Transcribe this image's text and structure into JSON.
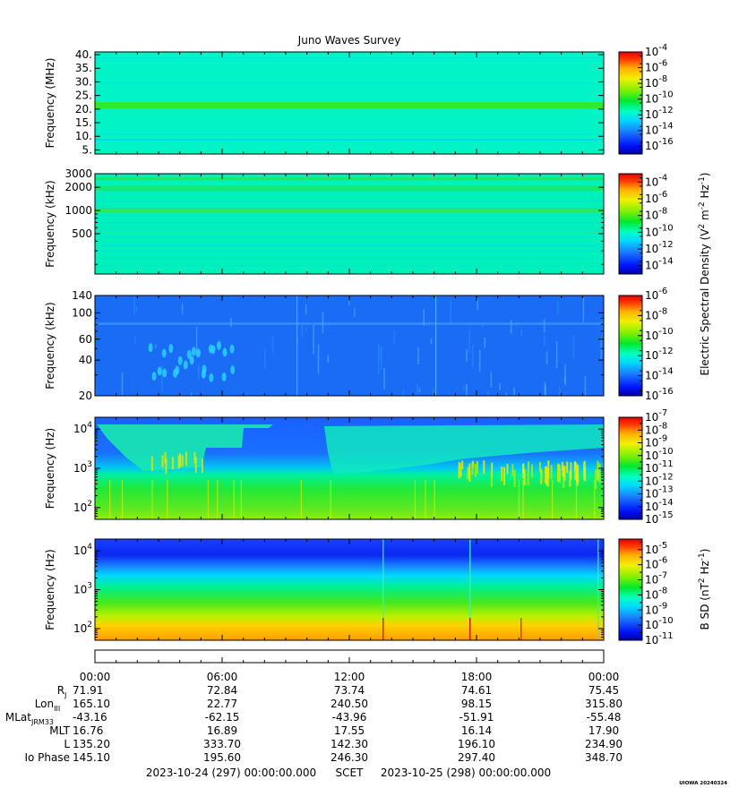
{
  "title": "Juno Waves Survey",
  "chart_data": {
    "type": "heatmap",
    "title": "Juno Waves Survey",
    "x_axis": {
      "tick_labels": [
        "00:00",
        "06:00",
        "12:00",
        "18:00",
        "00:00"
      ],
      "range": [
        "2023-10-24 00:00",
        "2023-10-25 00:00"
      ]
    },
    "panels": [
      {
        "name": "hfr-high",
        "ylabel": "Frequency (MHz)",
        "yscale": "linear",
        "ylim": [
          3.5,
          41
        ],
        "yticks": [
          5,
          10,
          15,
          20,
          25,
          30,
          35,
          40
        ],
        "ytick_labels": [
          "5.",
          "10.",
          "15.",
          "20.",
          "25.",
          "30.",
          "35.",
          "40."
        ],
        "colorbar_exponents": [
          "-4",
          "-6",
          "-8",
          "-10",
          "-12",
          "-14",
          "-16"
        ],
        "colorbar_range_exp": [
          -17,
          -4
        ]
      },
      {
        "name": "hfr-low",
        "ylabel": "Frequency (kHz)",
        "yscale": "log",
        "ylim": [
          150,
          3000
        ],
        "yticks": [
          500,
          1000,
          2000,
          3000
        ],
        "ytick_labels": [
          "500",
          "1000",
          "2000",
          "3000"
        ],
        "colorbar_exponents": [
          "-4",
          "-6",
          "-8",
          "-10",
          "-12",
          "-14"
        ],
        "colorbar_range_exp": [
          -15,
          -3
        ]
      },
      {
        "name": "lfr-high",
        "ylabel": "Frequency (kHz)",
        "yscale": "log",
        "ylim": [
          20,
          140
        ],
        "yticks": [
          20,
          40,
          60,
          100,
          140
        ],
        "ytick_labels": [
          "20",
          "40",
          "60",
          "100",
          "140"
        ],
        "colorbar_exponents": [
          "-6",
          "-8",
          "-10",
          "-12",
          "-14",
          "-16"
        ],
        "colorbar_range_exp": [
          -16,
          -6
        ]
      },
      {
        "name": "lfr-low",
        "ylabel": "Frequency (Hz)",
        "yscale": "log",
        "ylim": [
          50,
          20000
        ],
        "yticks": [
          100,
          1000,
          10000
        ],
        "ytick_labels": [
          [
            "10",
            "2"
          ],
          [
            "10",
            "3"
          ],
          [
            "10",
            "4"
          ]
        ],
        "colorbar_exponents": [
          "-7",
          "-8",
          "-9",
          "-10",
          "-11",
          "-12",
          "-13",
          "-14",
          "-15"
        ],
        "colorbar_range_exp": [
          -15,
          -7
        ]
      },
      {
        "name": "magnetic",
        "ylabel": "Frequency (Hz)",
        "yscale": "log",
        "ylim": [
          50,
          20000
        ],
        "yticks": [
          100,
          1000,
          10000
        ],
        "ytick_labels": [
          [
            "10",
            "2"
          ],
          [
            "10",
            "3"
          ],
          [
            "10",
            "4"
          ]
        ],
        "colorbar_exponents": [
          "-5",
          "-6",
          "-7",
          "-8",
          "-9",
          "-10",
          "-11"
        ],
        "colorbar_range_exp": [
          -11,
          -4.3
        ]
      }
    ],
    "colorbar_base": "10",
    "colorbar_titles": {
      "electric": {
        "text": "Electric Spectral Density (V",
        "sup1": "2",
        "mid": " m",
        "sup2": "-2",
        "mid2": " Hz",
        "sup3": "-1",
        "end": ")"
      },
      "magnetic": {
        "text": "B SD (nT",
        "sup1": "2",
        "mid": " Hz",
        "sup2": "-1",
        "end": ")"
      }
    }
  },
  "ephemeris": {
    "times": [
      "00:00",
      "06:00",
      "12:00",
      "18:00",
      "00:00"
    ],
    "rows": [
      {
        "label": "R",
        "sub": "J",
        "values": [
          "71.91",
          "72.84",
          "73.74",
          "74.61",
          "75.45"
        ]
      },
      {
        "label": "Lon",
        "sub": "III",
        "values": [
          "165.10",
          "22.77",
          "240.50",
          "98.15",
          "315.80"
        ]
      },
      {
        "label": "MLat",
        "sub": "JRM33",
        "values": [
          "-43.16",
          "-62.15",
          "-43.96",
          "-51.91",
          "-55.48"
        ]
      },
      {
        "label": "MLT",
        "sub": "",
        "values": [
          "16.76",
          "16.89",
          "17.55",
          "16.14",
          "17.90"
        ]
      },
      {
        "label": "L",
        "sub": "",
        "values": [
          "135.20",
          "333.70",
          "142.30",
          "196.10",
          "234.90"
        ]
      },
      {
        "label": "Io Phase",
        "sub": "",
        "values": [
          "145.10",
          "195.60",
          "246.30",
          "297.40",
          "348.70"
        ]
      }
    ]
  },
  "footer": {
    "start": "2023-10-24 (297) 00:00:00.000",
    "scet": "SCET",
    "end": "2023-10-25 (298) 00:00:00.000"
  },
  "credit": "UIOWA 20240324",
  "colors": {
    "background": "#ffffff",
    "axis": "#000000",
    "colormap": [
      "#0000a0",
      "#0010ff",
      "#1a7dff",
      "#00d8ff",
      "#00ffc0",
      "#00e830",
      "#7cf000",
      "#f0f000",
      "#ffb000",
      "#ff3800",
      "#e00000"
    ]
  }
}
